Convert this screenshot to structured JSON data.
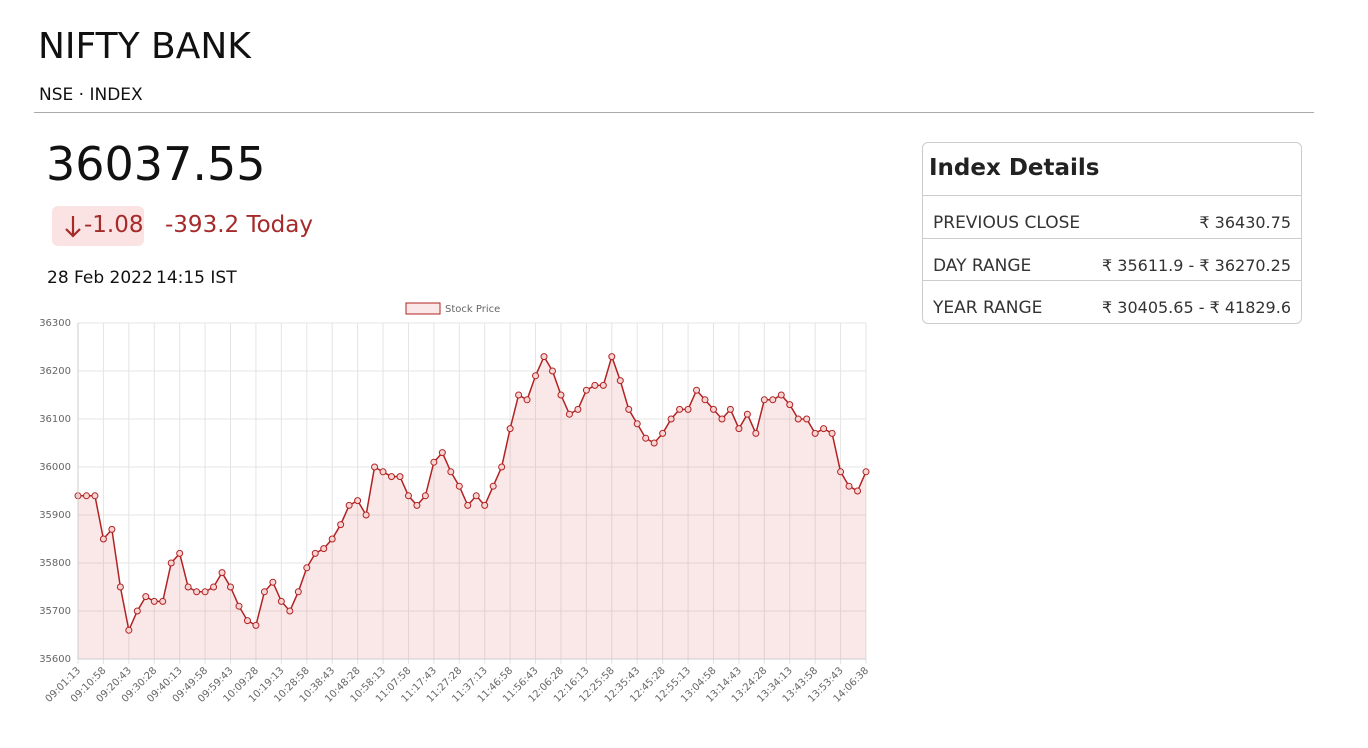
{
  "header": {
    "title": "NIFTY BANK",
    "subtitle": "NSE · INDEX"
  },
  "quote": {
    "price": "36037.55",
    "change": "-1.08",
    "change_today": "-393.2 Today",
    "date": "28 Feb 2022",
    "time": "14:15 IST"
  },
  "chart_data": {
    "type": "line",
    "categories": [
      "09:01:13",
      null,
      null,
      "09:10:58",
      null,
      null,
      "09:20:43",
      null,
      null,
      "09:30:28",
      null,
      null,
      "09:40:13",
      null,
      null,
      "09:49:58",
      null,
      null,
      "09:59:43",
      null,
      null,
      "10:09:28",
      null,
      null,
      "10:19:13",
      null,
      null,
      "10:28:58",
      null,
      null,
      "10:38:43",
      null,
      null,
      "10:48:28",
      null,
      null,
      "10:58:13",
      null,
      null,
      "11:07:58",
      null,
      null,
      "11:17:43",
      null,
      null,
      "11:27:28",
      null,
      null,
      "11:37:13",
      null,
      null,
      "11:46:58",
      null,
      null,
      "11:56:43",
      null,
      null,
      "12:06:28",
      null,
      null,
      "12:16:13",
      null,
      null,
      "12:25:58",
      null,
      null,
      "12:35:43",
      null,
      null,
      "12:45:28",
      null,
      null,
      "12:55:13",
      null,
      null,
      "13:04:58",
      null,
      null,
      "13:14:43",
      null,
      null,
      "13:24:28",
      null,
      null,
      "13:34:13",
      null,
      null,
      "13:43:58",
      null,
      null,
      "13:53:43",
      null,
      null,
      "14:06:38"
    ],
    "series": [
      {
        "name": "Stock Price",
        "color": "#b22222",
        "values": [
          35940,
          35940,
          35940,
          35850,
          35870,
          35750,
          35660,
          35700,
          35730,
          35720,
          35720,
          35800,
          35820,
          35750,
          35740,
          35740,
          35750,
          35780,
          35750,
          35710,
          35680,
          35670,
          35740,
          35760,
          35720,
          35700,
          35740,
          35790,
          35820,
          35830,
          35850,
          35880,
          35920,
          35930,
          35900,
          36000,
          35990,
          35980,
          35980,
          35940,
          35920,
          35940,
          36010,
          36030,
          35990,
          35960,
          35920,
          35940,
          35920,
          35960,
          36000,
          36080,
          36150,
          36140,
          36190,
          36230,
          36200,
          36150,
          36110,
          36120,
          36160,
          36170,
          36170,
          36230,
          36180,
          36120,
          36090,
          36060,
          36050,
          36070,
          36100,
          36120,
          36120,
          36160,
          36140,
          36120,
          36100,
          36120,
          36080,
          36110,
          36070,
          36140,
          36140,
          36150,
          36130,
          36100,
          36100,
          36070,
          36080,
          36070,
          35990,
          35960,
          35950,
          35990
        ]
      }
    ],
    "ylim": [
      35600,
      36300
    ],
    "yticks": [
      35600,
      35700,
      35800,
      35900,
      36000,
      36100,
      36200,
      36300
    ],
    "grid": true,
    "legend": "top"
  },
  "details": {
    "title": "Index Details",
    "rows": [
      [
        "PREVIOUS CLOSE",
        "₹ 36430.75"
      ],
      [
        "DAY RANGE",
        "₹ 35611.9 - ₹ 36270.25"
      ],
      [
        "YEAR RANGE",
        "₹ 30405.65 - ₹ 41829.6"
      ]
    ]
  }
}
